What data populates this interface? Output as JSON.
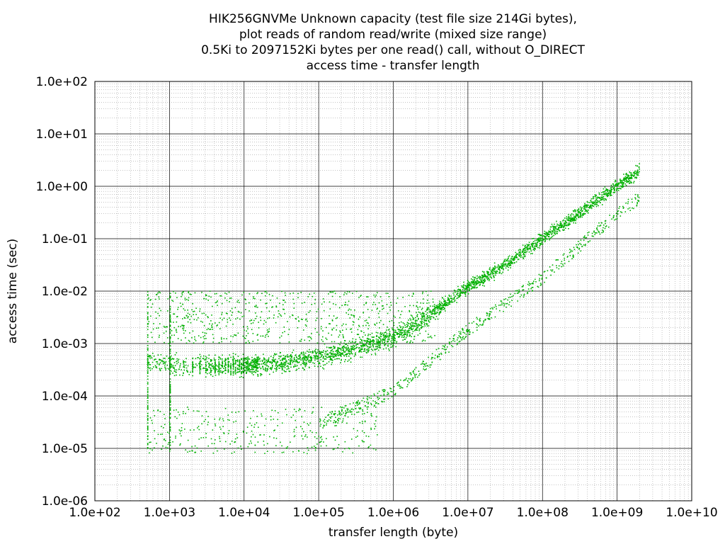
{
  "chart_data": {
    "type": "scatter",
    "title_lines": [
      "HIK256GNVMe Unknown capacity (test file size 214Gi bytes),",
      "plot reads of random read/write (mixed size range)",
      "0.5Ki to 2097152Ki bytes per one read() call, without O_DIRECT",
      "access time - transfer length"
    ],
    "xlabel": "transfer length (byte)",
    "ylabel": "access time (sec)",
    "x_scale": "log",
    "y_scale": "log",
    "xlim": [
      100,
      10000000000
    ],
    "ylim": [
      1e-06,
      100
    ],
    "x_ticks": [
      {
        "value": 100,
        "label": "1.0e+02"
      },
      {
        "value": 1000,
        "label": "1.0e+03"
      },
      {
        "value": 10000,
        "label": "1.0e+04"
      },
      {
        "value": 100000,
        "label": "1.0e+05"
      },
      {
        "value": 1000000,
        "label": "1.0e+06"
      },
      {
        "value": 10000000,
        "label": "1.0e+07"
      },
      {
        "value": 100000000,
        "label": "1.0e+08"
      },
      {
        "value": 1000000000,
        "label": "1.0e+09"
      },
      {
        "value": 10000000000,
        "label": "1.0e+10"
      }
    ],
    "y_ticks": [
      {
        "value": 100,
        "label": "1.0e+02"
      },
      {
        "value": 10,
        "label": "1.0e+01"
      },
      {
        "value": 1,
        "label": "1.0e+00"
      },
      {
        "value": 0.1,
        "label": "1.0e-01"
      },
      {
        "value": 0.01,
        "label": "1.0e-02"
      },
      {
        "value": 0.001,
        "label": "1.0e-03"
      },
      {
        "value": 0.0001,
        "label": "1.0e-04"
      },
      {
        "value": 1e-05,
        "label": "1.0e-05"
      },
      {
        "value": 1e-06,
        "label": "1.0e-06"
      }
    ],
    "grid": true,
    "point_color": "#00b000",
    "series": [
      {
        "x_min": 512,
        "x_max": 2147483648,
        "main_band": [
          [
            512,
            0.00045
          ],
          [
            1000,
            0.0004
          ],
          [
            3000,
            0.00037
          ],
          [
            10000,
            0.00038
          ],
          [
            30000,
            0.00042
          ],
          [
            100000,
            0.00055
          ],
          [
            300000,
            0.0008
          ],
          [
            1000000,
            0.0013
          ],
          [
            3000000,
            0.0035
          ],
          [
            10000000,
            0.012
          ],
          [
            30000000,
            0.03
          ],
          [
            100000000,
            0.1
          ],
          [
            300000000,
            0.3
          ],
          [
            1000000000,
            1.0
          ],
          [
            2000000000,
            2.0
          ]
        ],
        "lower_band": [
          [
            100000,
            3e-05
          ],
          [
            1000000,
            0.00012
          ],
          [
            10000000,
            0.0018
          ],
          [
            100000000,
            0.018
          ],
          [
            1000000000,
            0.3
          ],
          [
            2000000000,
            0.6
          ]
        ],
        "upper_scatter": [
          [
            512,
            0.01
          ],
          [
            1000,
            0.008
          ],
          [
            100000,
            0.007
          ],
          [
            1000000,
            0.007
          ],
          [
            3000000,
            0.02
          ]
        ],
        "low_scatter": [
          [
            512,
            1e-05
          ],
          [
            1000,
            1.2e-05
          ],
          [
            10000,
            2e-05
          ],
          [
            30000,
            3e-05
          ]
        ]
      }
    ]
  }
}
